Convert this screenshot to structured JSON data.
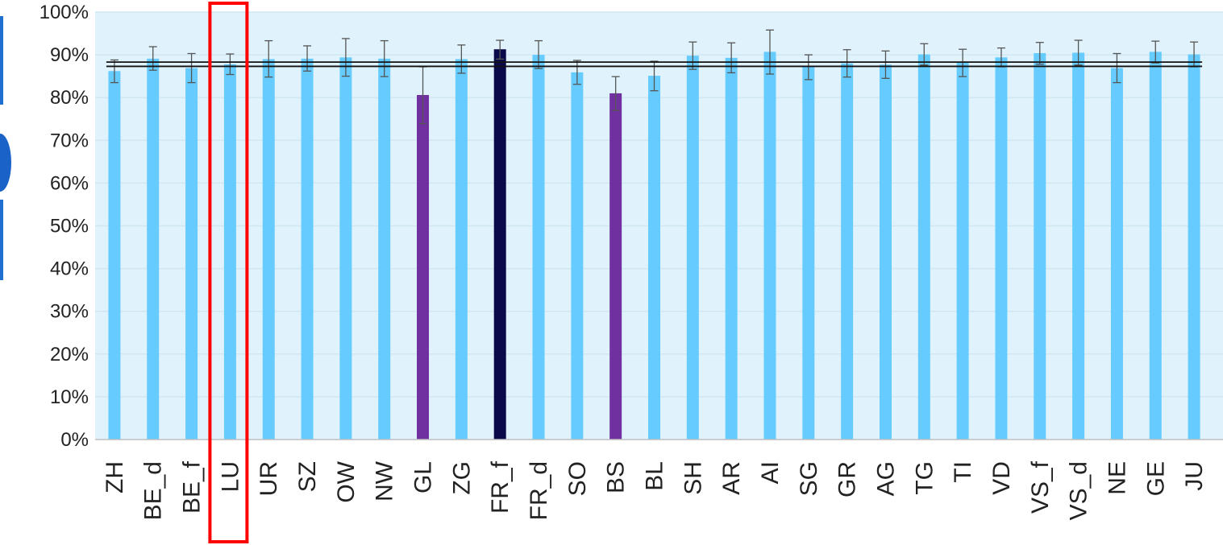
{
  "chart_data": {
    "type": "bar",
    "title": "",
    "xlabel": "",
    "ylabel": "",
    "ylim": [
      0,
      100
    ],
    "y_ticks": [
      "0%",
      "10%",
      "20%",
      "30%",
      "40%",
      "50%",
      "60%",
      "70%",
      "80%",
      "90%",
      "100%"
    ],
    "grid": true,
    "categories": [
      "ZH",
      "BE_d",
      "BE_f",
      "LU",
      "UR",
      "SZ",
      "OW",
      "NW",
      "GL",
      "ZG",
      "FR_f",
      "FR_d",
      "SO",
      "BS",
      "BL",
      "SH",
      "AR",
      "AI",
      "SG",
      "GR",
      "AG",
      "TG",
      "TI",
      "VD",
      "VS_f",
      "VS_d",
      "NE",
      "GE",
      "JU"
    ],
    "values": [
      86.2,
      89.1,
      86.9,
      87.8,
      89.0,
      89.1,
      89.4,
      89.1,
      80.6,
      89.0,
      91.3,
      90.0,
      85.9,
      81.0,
      85.1,
      89.8,
      89.3,
      90.7,
      87.2,
      88.0,
      87.7,
      90.1,
      88.2,
      89.4,
      90.4,
      90.5,
      86.9,
      90.7,
      90.1
    ],
    "error_low": [
      83.5,
      86.4,
      83.5,
      85.4,
      84.8,
      86.2,
      85.0,
      84.9,
      73.9,
      85.7,
      89.0,
      86.8,
      83.1,
      77.0,
      81.6,
      86.6,
      85.8,
      85.5,
      84.2,
      84.8,
      84.5,
      87.6,
      84.9,
      87.2,
      87.8,
      87.6,
      83.5,
      88.1,
      87.2
    ],
    "error_high": [
      88.8,
      91.9,
      90.3,
      90.2,
      93.3,
      92.1,
      93.8,
      93.3,
      87.2,
      92.3,
      93.4,
      93.3,
      88.7,
      84.9,
      88.5,
      93.0,
      92.8,
      95.8,
      90.0,
      91.2,
      90.9,
      92.6,
      91.3,
      91.6,
      92.9,
      93.4,
      90.3,
      93.2,
      93.0
    ],
    "bar_colors": {
      "default": "#66ccff",
      "highlight_purple": "#7030a0",
      "highlight_dark": "#0a0a4a",
      "purple_categories": [
        "GL",
        "BS"
      ],
      "dark_categories": [
        "FR_f"
      ]
    },
    "reference_lines": [
      87.3,
      88.3
    ],
    "highlighted_category": "LU",
    "highlight_box_color": "#ff0000",
    "plot_background": "#e0f3fc",
    "gridline_color": "#cfe7f2"
  }
}
